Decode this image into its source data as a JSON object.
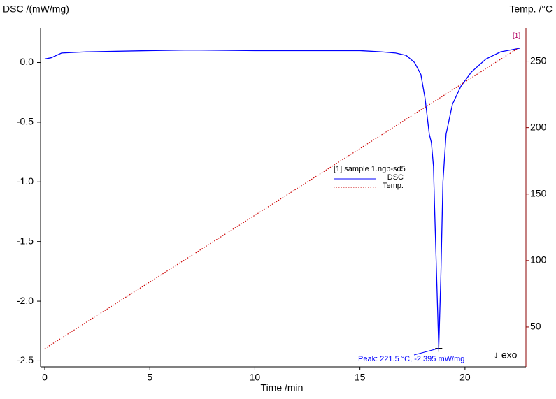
{
  "chart_data": {
    "type": "line",
    "y_label": "DSC /(mW/mg)",
    "y2_label": "Temp. /°C",
    "x_label": "Time /min",
    "xlim": [
      -0.2,
      22.9
    ],
    "xticks": [
      0,
      5,
      10,
      15,
      20
    ],
    "ylim": [
      -2.55,
      0.29
    ],
    "yticks": [
      {
        "value": 0,
        "label": "0.0"
      },
      -0.5,
      {
        "value": -1,
        "label": "-1.0"
      },
      -1.5,
      {
        "value": -2,
        "label": "-2.0"
      },
      -2.5
    ],
    "y2lim": [
      20,
      275
    ],
    "y2ticks": [
      50,
      100,
      150,
      200,
      250
    ],
    "legend_title": "[1] sample 1.ngb-sd5",
    "series": [
      {
        "name": "DSC",
        "color": "#0000ff",
        "dash": false,
        "x": [
          0,
          0.3,
          0.8,
          2,
          5,
          7,
          10,
          15,
          16,
          16.7,
          17.2,
          17.6,
          17.9,
          18.1,
          18.3,
          18.4,
          18.5,
          18.55,
          18.65,
          18.75,
          18.85,
          18.95,
          19.1,
          19.4,
          19.8,
          20.3,
          21,
          21.7,
          22.3,
          22.6
        ],
        "values": [
          0.03,
          0.04,
          0.08,
          0.09,
          0.1,
          0.105,
          0.1,
          0.1,
          0.09,
          0.08,
          0.06,
          0,
          -0.1,
          -0.3,
          -0.6,
          -0.67,
          -0.87,
          -1.2,
          -1.8,
          -2.395,
          -1.8,
          -1.0,
          -0.6,
          -0.35,
          -0.2,
          -0.08,
          0.03,
          0.09,
          0.11,
          0.12
        ]
      },
      {
        "name": "Temp.",
        "color": "#cc0000",
        "dash": true,
        "axis": "y2",
        "x": [
          0,
          22.6
        ],
        "values": [
          33.7,
          260.5
        ]
      }
    ],
    "peak": {
      "label": "Peak: 221.5 °C, -2.395 mW/mg",
      "x": 18.75,
      "y": -2.395
    },
    "end_marker": "[1]",
    "exo_label": "↓ exo"
  }
}
